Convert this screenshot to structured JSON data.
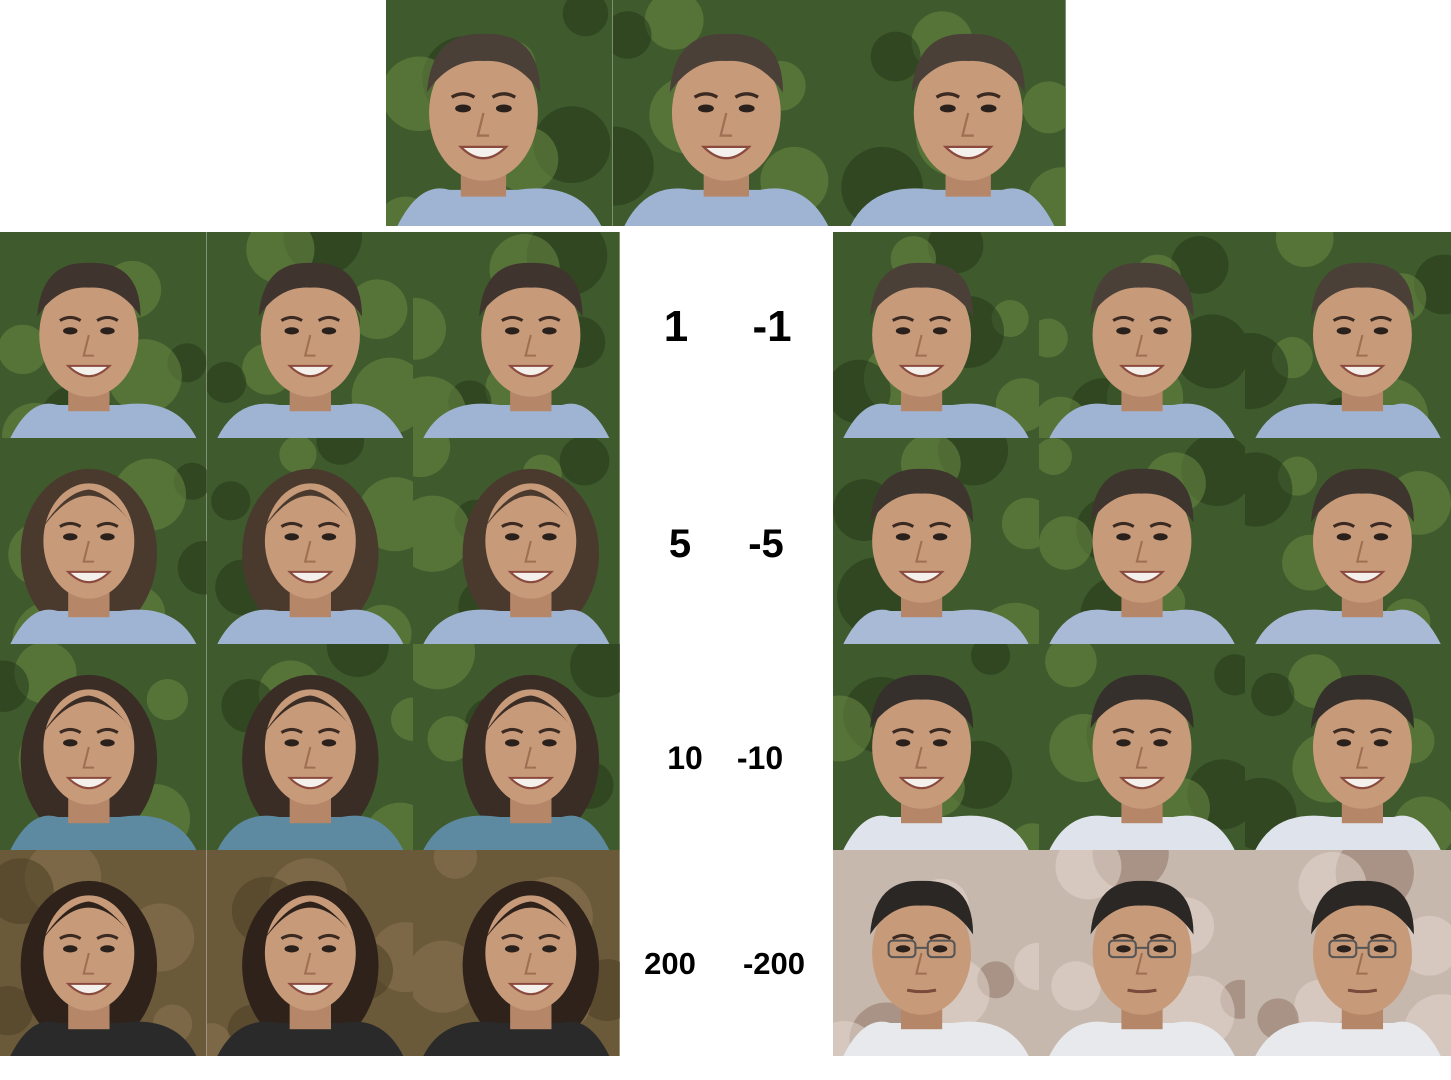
{
  "colors": {
    "background": "#ffffff",
    "label_text": "#000000",
    "foliage": "#3f5a2c",
    "foliage_dark": "#26381c",
    "foliage_light": "#6a8a44",
    "skin": "#c79a7a",
    "shirt": "#9fb4d2",
    "hair_dark": "#3a2f28",
    "warm_background": "#6b5a3a",
    "studio_background": "#c7b8ad",
    "white_shirt": "#e7e9ec"
  },
  "top_row": {
    "description_icon": "face-photo",
    "tiles": [
      {
        "pose": "left",
        "subject": "man",
        "hair": "#4a4038",
        "bg": "foliage",
        "shirt": "#9fb4d2"
      },
      {
        "pose": "front",
        "subject": "man",
        "hair": "#4a4038",
        "bg": "foliage",
        "shirt": "#9fb4d2"
      },
      {
        "pose": "right",
        "subject": "man",
        "hair": "#4a4038",
        "bg": "foliage",
        "shirt": "#9fb4d2"
      }
    ]
  },
  "rows": [
    {
      "positive_label": "1",
      "negative_label": "-1",
      "left": [
        {
          "pose": "left",
          "subject": "man",
          "hair": "#3f352e",
          "bg": "foliage",
          "shirt": "#9fb4d2"
        },
        {
          "pose": "front",
          "subject": "man",
          "hair": "#3f352e",
          "bg": "foliage",
          "shirt": "#9fb4d2"
        },
        {
          "pose": "right",
          "subject": "man",
          "hair": "#3f352e",
          "bg": "foliage",
          "shirt": "#9fb4d2"
        }
      ],
      "right": [
        {
          "pose": "left",
          "subject": "man",
          "hair": "#4a4038",
          "bg": "foliage",
          "shirt": "#9fb4d2"
        },
        {
          "pose": "front",
          "subject": "man",
          "hair": "#4a4038",
          "bg": "foliage",
          "shirt": "#9fb4d2"
        },
        {
          "pose": "right",
          "subject": "man",
          "hair": "#4a4038",
          "bg": "foliage",
          "shirt": "#9fb4d2"
        }
      ]
    },
    {
      "positive_label": "5",
      "negative_label": "-5",
      "left": [
        {
          "pose": "left",
          "subject": "woman",
          "hair": "#4a3a2e",
          "bg": "foliage",
          "shirt": "#9fb4d2"
        },
        {
          "pose": "front",
          "subject": "woman",
          "hair": "#4a3a2e",
          "bg": "foliage",
          "shirt": "#9fb4d2"
        },
        {
          "pose": "right",
          "subject": "woman",
          "hair": "#4a3a2e",
          "bg": "foliage",
          "shirt": "#9fb4d2"
        }
      ],
      "right": [
        {
          "pose": "left",
          "subject": "man",
          "hair": "#3e352e",
          "bg": "foliage",
          "shirt": "#a8bad6"
        },
        {
          "pose": "front",
          "subject": "man",
          "hair": "#3e352e",
          "bg": "foliage",
          "shirt": "#a8bad6"
        },
        {
          "pose": "right",
          "subject": "man",
          "hair": "#3e352e",
          "bg": "foliage",
          "shirt": "#a8bad6"
        }
      ]
    },
    {
      "positive_label": "10",
      "negative_label": "-10",
      "left": [
        {
          "pose": "left",
          "subject": "woman",
          "hair": "#3a2d25",
          "bg": "foliage",
          "shirt": "#5d8aa0"
        },
        {
          "pose": "front",
          "subject": "woman",
          "hair": "#3a2d25",
          "bg": "foliage",
          "shirt": "#5d8aa0"
        },
        {
          "pose": "right",
          "subject": "woman",
          "hair": "#3a2d25",
          "bg": "foliage",
          "shirt": "#5d8aa0"
        }
      ],
      "right": [
        {
          "pose": "left",
          "subject": "man",
          "hair": "#35302b",
          "bg": "foliage",
          "shirt": "#dfe4ec"
        },
        {
          "pose": "front",
          "subject": "man",
          "hair": "#35302b",
          "bg": "foliage",
          "shirt": "#dfe4ec"
        },
        {
          "pose": "right",
          "subject": "man",
          "hair": "#35302b",
          "bg": "foliage",
          "shirt": "#dfe4ec"
        }
      ]
    },
    {
      "positive_label": "200",
      "negative_label": "-200",
      "left": [
        {
          "pose": "left",
          "subject": "woman",
          "hair": "#2e221b",
          "bg": "warm",
          "shirt": "#2a2a2a"
        },
        {
          "pose": "front",
          "subject": "woman",
          "hair": "#2e221b",
          "bg": "warm",
          "shirt": "#2a2a2a"
        },
        {
          "pose": "right",
          "subject": "woman",
          "hair": "#2e221b",
          "bg": "warm",
          "shirt": "#2a2a2a"
        }
      ],
      "right": [
        {
          "pose": "left",
          "subject": "man-glasses",
          "hair": "#2b2724",
          "bg": "studio",
          "shirt": "#e7e9ec"
        },
        {
          "pose": "front",
          "subject": "man-glasses",
          "hair": "#2b2724",
          "bg": "studio",
          "shirt": "#e7e9ec"
        },
        {
          "pose": "right",
          "subject": "man-glasses",
          "hair": "#2b2724",
          "bg": "studio",
          "shirt": "#e7e9ec"
        }
      ]
    }
  ]
}
